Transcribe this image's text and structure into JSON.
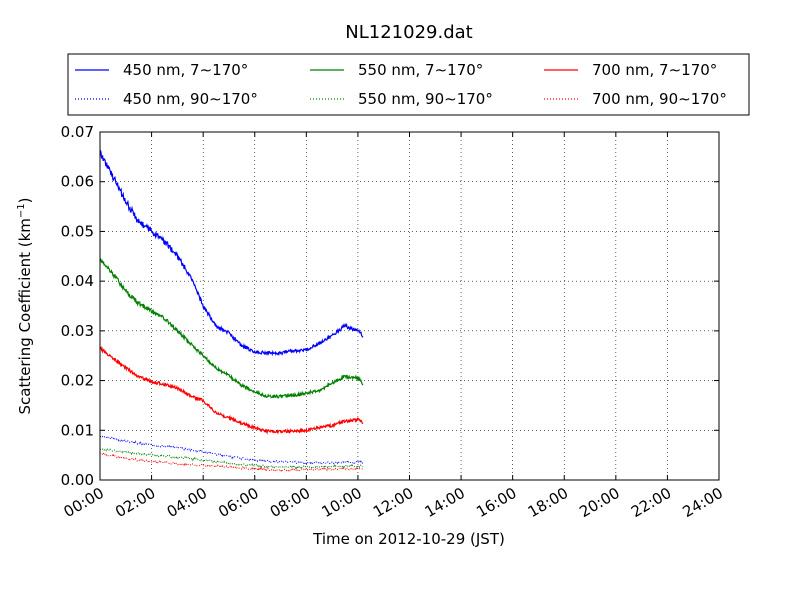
{
  "chart_data": {
    "type": "line",
    "title": "NL121029.dat",
    "xlabel": "Time on 2012-10-29 (JST)",
    "ylabel": "Scattering Coefficient (km",
    "ylabel_sup": "−1",
    "ylabel_tail": ")",
    "xlim": [
      0,
      24
    ],
    "ylim": [
      0,
      0.07
    ],
    "grid": true,
    "legend": "top, 3 columns",
    "xticks": [
      0,
      2,
      4,
      6,
      8,
      10,
      12,
      14,
      16,
      18,
      20,
      22,
      24
    ],
    "xtick_labels": [
      "00:00",
      "02:00",
      "04:00",
      "06:00",
      "08:00",
      "10:00",
      "12:00",
      "14:00",
      "16:00",
      "18:00",
      "20:00",
      "22:00",
      "24:00"
    ],
    "yticks": [
      0,
      0.01,
      0.02,
      0.03,
      0.04,
      0.05,
      0.06,
      0.07
    ],
    "ytick_labels": [
      "0.00",
      "0.01",
      "0.02",
      "0.03",
      "0.04",
      "0.05",
      "0.06",
      "0.07"
    ],
    "series": [
      {
        "name": "450 nm, 7∼170°",
        "color": "#0000ff",
        "style": "solid",
        "x": [
          0,
          0.5,
          1,
          1.5,
          2,
          2.5,
          3,
          3.5,
          4,
          4.5,
          5,
          5.5,
          6,
          6.5,
          7,
          7.5,
          8,
          8.5,
          9,
          9.5,
          10,
          10.2
        ],
        "y": [
          0.066,
          0.061,
          0.056,
          0.052,
          0.05,
          0.048,
          0.045,
          0.041,
          0.035,
          0.031,
          0.0295,
          0.027,
          0.0258,
          0.0256,
          0.0255,
          0.026,
          0.0262,
          0.0275,
          0.029,
          0.031,
          0.03,
          0.029
        ]
      },
      {
        "name": "550 nm, 7∼170°",
        "color": "#008000",
        "style": "solid",
        "x": [
          0,
          0.5,
          1,
          1.5,
          2,
          2.5,
          3,
          3.5,
          4,
          4.5,
          5,
          5.5,
          6,
          6.5,
          7,
          7.5,
          8,
          8.5,
          9,
          9.5,
          10,
          10.2
        ],
        "y": [
          0.0445,
          0.0415,
          0.038,
          0.0355,
          0.034,
          0.0325,
          0.03,
          0.0275,
          0.025,
          0.0225,
          0.021,
          0.019,
          0.0178,
          0.0168,
          0.0168,
          0.017,
          0.0175,
          0.018,
          0.0195,
          0.0208,
          0.0205,
          0.0193
        ]
      },
      {
        "name": "700 nm, 7∼170°",
        "color": "#ff0000",
        "style": "solid",
        "x": [
          0,
          0.5,
          1,
          1.5,
          2,
          2.5,
          3,
          3.5,
          4,
          4.5,
          5,
          5.5,
          6,
          6.5,
          7,
          7.5,
          8,
          8.5,
          9,
          9.5,
          10,
          10.2
        ],
        "y": [
          0.0265,
          0.0245,
          0.0225,
          0.0208,
          0.0198,
          0.0192,
          0.0185,
          0.017,
          0.016,
          0.0135,
          0.0125,
          0.0115,
          0.0105,
          0.0098,
          0.0098,
          0.0098,
          0.01,
          0.0105,
          0.011,
          0.0118,
          0.0122,
          0.0115
        ]
      },
      {
        "name": "450 nm, 90∼170°",
        "color": "#0000ff",
        "style": "dotted",
        "x": [
          0,
          1,
          2,
          3,
          4,
          5,
          6,
          7,
          8,
          9,
          10,
          10.2
        ],
        "y": [
          0.0088,
          0.0078,
          0.007,
          0.0065,
          0.0057,
          0.0047,
          0.004,
          0.0036,
          0.0035,
          0.0035,
          0.0036,
          0.0035
        ]
      },
      {
        "name": "550 nm, 90∼170°",
        "color": "#008000",
        "style": "dotted",
        "x": [
          0,
          1,
          2,
          3,
          4,
          5,
          6,
          7,
          8,
          9,
          10,
          10.2
        ],
        "y": [
          0.0063,
          0.0056,
          0.005,
          0.0046,
          0.004,
          0.0034,
          0.0029,
          0.0026,
          0.0026,
          0.0027,
          0.0028,
          0.0028
        ]
      },
      {
        "name": "700 nm, 90∼170°",
        "color": "#ff0000",
        "style": "dotted",
        "x": [
          0,
          1,
          2,
          3,
          4,
          5,
          6,
          7,
          8,
          9,
          10,
          10.2
        ],
        "y": [
          0.0053,
          0.0043,
          0.0037,
          0.0033,
          0.003,
          0.0026,
          0.0022,
          0.002,
          0.0021,
          0.0022,
          0.0022,
          0.0022
        ]
      }
    ]
  }
}
